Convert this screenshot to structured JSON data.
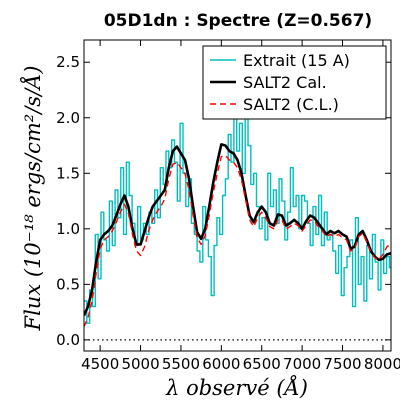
{
  "chart_data": {
    "type": "line",
    "title": "05D1dn : Spectre (Z=0.567)",
    "xlabel": "λ observé (Å)",
    "ylabel": "Flux (10⁻¹⁸ ergs/cm²/s/Å)",
    "xlim": [
      4300,
      8100
    ],
    "ylim": [
      -0.1,
      2.7
    ],
    "x_ticks": [
      4500,
      5000,
      5500,
      6000,
      6500,
      7000,
      7500,
      8000
    ],
    "x_tick_labels": [
      "4500",
      "5000",
      "5500",
      "6000",
      "6500",
      "7000",
      "7500",
      "8000"
    ],
    "y_ticks": [
      0.0,
      0.5,
      1.0,
      1.5,
      2.0,
      2.5
    ],
    "y_tick_labels": [
      "0.0",
      "0.5",
      "1.0",
      "1.5",
      "2.0",
      "2.5"
    ],
    "legend_position": "top-right",
    "zero_line": {
      "y": 0.0,
      "style": "dotted",
      "color": "#000000"
    },
    "series": [
      {
        "name": "Extrait (15 A)",
        "color": "#00bfbf",
        "style": "steps",
        "x": [
          4300,
          4335,
          4370,
          4405,
          4440,
          4475,
          4510,
          4545,
          4580,
          4615,
          4650,
          4685,
          4720,
          4755,
          4790,
          4825,
          4860,
          4895,
          4930,
          4965,
          5000,
          5035,
          5070,
          5105,
          5140,
          5175,
          5210,
          5245,
          5280,
          5315,
          5350,
          5385,
          5420,
          5455,
          5490,
          5525,
          5560,
          5595,
          5630,
          5665,
          5700,
          5735,
          5770,
          5805,
          5840,
          5875,
          5910,
          5945,
          5980,
          6015,
          6050,
          6085,
          6120,
          6155,
          6190,
          6225,
          6260,
          6295,
          6330,
          6365,
          6400,
          6435,
          6470,
          6505,
          6540,
          6575,
          6610,
          6645,
          6680,
          6715,
          6750,
          6785,
          6820,
          6855,
          6890,
          6925,
          6960,
          6995,
          7030,
          7065,
          7100,
          7135,
          7170,
          7205,
          7240,
          7275,
          7310,
          7345,
          7380,
          7415,
          7450,
          7485,
          7520,
          7555,
          7590,
          7625,
          7660,
          7695,
          7730,
          7765,
          7800,
          7835,
          7870,
          7905,
          7940,
          7975,
          8010,
          8045,
          8080
        ],
        "y": [
          0.35,
          0.15,
          0.45,
          0.3,
          0.95,
          0.55,
          1.15,
          0.9,
          0.8,
          1.25,
          0.85,
          1.35,
          1.1,
          1.55,
          0.95,
          1.6,
          1.3,
          1.05,
          0.85,
          1.2,
          0.9,
          1.05,
          0.95,
          1.15,
          1.05,
          1.35,
          1.1,
          1.55,
          1.4,
          1.7,
          1.55,
          1.8,
          1.6,
          1.25,
          1.95,
          1.5,
          1.2,
          1.45,
          1.05,
          0.95,
          0.8,
          0.7,
          1.2,
          0.9,
          0.75,
          0.4,
          0.85,
          1.1,
          0.95,
          1.3,
          1.45,
          1.85,
          1.6,
          2.1,
          1.7,
          1.95,
          1.5,
          2.25,
          1.75,
          1.4,
          1.5,
          1.2,
          1.0,
          1.1,
          0.9,
          1.5,
          1.2,
          1.35,
          1.05,
          1.45,
          1.25,
          0.9,
          1.15,
          1.55,
          1.2,
          1.3,
          1.0,
          1.3,
          1.25,
          1.05,
          0.85,
          1.2,
          0.95,
          1.3,
          0.85,
          1.15,
          0.9,
          0.95,
          0.8,
          0.6,
          0.85,
          0.4,
          0.65,
          0.75,
          0.9,
          0.3,
          1.1,
          0.5,
          0.75,
          0.35,
          0.85,
          0.55,
          0.95,
          0.7,
          0.45,
          0.9,
          0.6,
          0.75,
          0.65
        ]
      },
      {
        "name": "SALT2 Cal.",
        "color": "#000000",
        "style": "solid",
        "x": [
          4300,
          4350,
          4400,
          4450,
          4500,
          4550,
          4600,
          4650,
          4700,
          4750,
          4800,
          4850,
          4900,
          4950,
          5000,
          5050,
          5100,
          5150,
          5200,
          5250,
          5300,
          5350,
          5400,
          5450,
          5500,
          5550,
          5600,
          5650,
          5700,
          5750,
          5800,
          5850,
          5900,
          5950,
          6000,
          6050,
          6100,
          6150,
          6200,
          6250,
          6300,
          6350,
          6400,
          6450,
          6500,
          6550,
          6600,
          6650,
          6700,
          6750,
          6800,
          6850,
          6900,
          6950,
          7000,
          7050,
          7100,
          7150,
          7200,
          7250,
          7300,
          7350,
          7400,
          7450,
          7500,
          7550,
          7600,
          7650,
          7700,
          7750,
          7800,
          7850,
          7900,
          7950,
          8000,
          8050,
          8100
        ],
        "y": [
          0.22,
          0.3,
          0.45,
          0.7,
          0.9,
          0.95,
          0.98,
          1.03,
          1.12,
          1.22,
          1.3,
          1.2,
          1.0,
          0.86,
          0.86,
          0.98,
          1.1,
          1.2,
          1.25,
          1.3,
          1.35,
          1.55,
          1.7,
          1.74,
          1.68,
          1.62,
          1.45,
          1.2,
          0.97,
          0.91,
          1.0,
          1.2,
          1.42,
          1.6,
          1.76,
          1.75,
          1.7,
          1.68,
          1.62,
          1.5,
          1.3,
          1.12,
          1.06,
          1.15,
          1.2,
          1.15,
          1.05,
          1.03,
          1.13,
          1.12,
          1.03,
          1.05,
          1.08,
          1.05,
          1.0,
          1.07,
          1.12,
          1.1,
          1.05,
          1.0,
          0.95,
          0.98,
          0.96,
          0.98,
          0.95,
          0.93,
          0.82,
          0.84,
          0.95,
          0.98,
          0.9,
          0.8,
          0.75,
          0.72,
          0.73,
          0.77,
          0.78
        ]
      },
      {
        "name": "SALT2 (C.L.)",
        "color": "#ff0000",
        "style": "dashed",
        "x": [
          4300,
          4350,
          4400,
          4450,
          4500,
          4550,
          4600,
          4650,
          4700,
          4750,
          4800,
          4850,
          4900,
          4950,
          5000,
          5050,
          5100,
          5150,
          5200,
          5250,
          5300,
          5350,
          5400,
          5450,
          5500,
          5550,
          5600,
          5650,
          5700,
          5750,
          5800,
          5850,
          5900,
          5950,
          6000,
          6050,
          6100,
          6150,
          6200,
          6250,
          6300,
          6350,
          6400,
          6450,
          6500,
          6550,
          6600,
          6650,
          6700,
          6750,
          6800,
          6850,
          6900,
          6950,
          7000,
          7050,
          7100,
          7150,
          7200,
          7250,
          7300,
          7350,
          7400,
          7450,
          7500,
          7550,
          7600,
          7650,
          7700,
          7750,
          7800,
          7850,
          7900,
          7950,
          8000,
          8050,
          8100
        ],
        "y": [
          0.12,
          0.2,
          0.35,
          0.6,
          0.82,
          0.9,
          0.93,
          0.98,
          1.06,
          1.15,
          1.22,
          1.14,
          0.95,
          0.8,
          0.76,
          0.84,
          0.98,
          1.08,
          1.15,
          1.2,
          1.27,
          1.45,
          1.58,
          1.6,
          1.55,
          1.5,
          1.35,
          1.12,
          0.92,
          0.86,
          0.94,
          1.12,
          1.33,
          1.5,
          1.65,
          1.66,
          1.62,
          1.6,
          1.55,
          1.44,
          1.26,
          1.08,
          1.02,
          1.1,
          1.15,
          1.1,
          1.02,
          1.0,
          1.08,
          1.08,
          1.0,
          1.02,
          1.05,
          1.03,
          0.98,
          1.03,
          1.08,
          1.07,
          1.02,
          0.98,
          0.93,
          0.95,
          0.93,
          0.95,
          0.92,
          0.9,
          0.8,
          0.82,
          0.93,
          0.96,
          0.88,
          0.79,
          0.74,
          0.72,
          0.77,
          0.84,
          0.86
        ]
      }
    ]
  }
}
